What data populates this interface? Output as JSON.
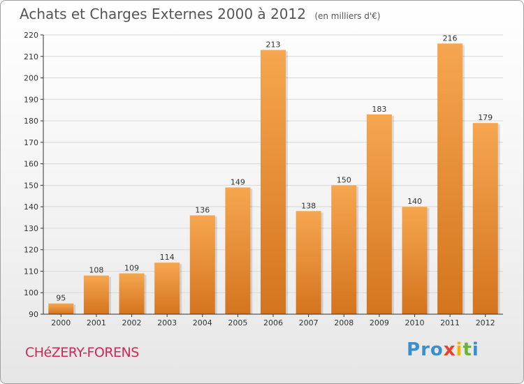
{
  "title": "Achats et Charges Externes 2000 à 2012",
  "subtitle": "(en milliers d'€)",
  "town": "CHéZERY-FORENS",
  "logo": {
    "letters": [
      "P",
      "r",
      "o",
      "x",
      "i",
      "t",
      "i"
    ],
    "colors": [
      "#3a8fd0",
      "#3a8fd0",
      "#3a8fd0",
      "#e8422c",
      "#f2b400",
      "#67b637",
      "#3a8fd0"
    ]
  },
  "colors": {
    "bar_top": "#f6a650",
    "bar_bottom": "#d4741e",
    "grid": "#d8d8d8",
    "axis": "#333333"
  },
  "chart_data": {
    "type": "bar",
    "title": "Achats et Charges Externes 2000 à 2012",
    "xlabel": "",
    "ylabel": "(en milliers d'€)",
    "ylim": [
      90,
      220
    ],
    "yticks": [
      90,
      100,
      110,
      120,
      130,
      140,
      150,
      160,
      170,
      180,
      190,
      200,
      210,
      220
    ],
    "grid": true,
    "categories": [
      "2000",
      "2001",
      "2002",
      "2003",
      "2004",
      "2005",
      "2006",
      "2007",
      "2008",
      "2009",
      "2010",
      "2011",
      "2012"
    ],
    "values": [
      95,
      108,
      109,
      114,
      136,
      149,
      213,
      138,
      150,
      183,
      140,
      216,
      179
    ]
  }
}
